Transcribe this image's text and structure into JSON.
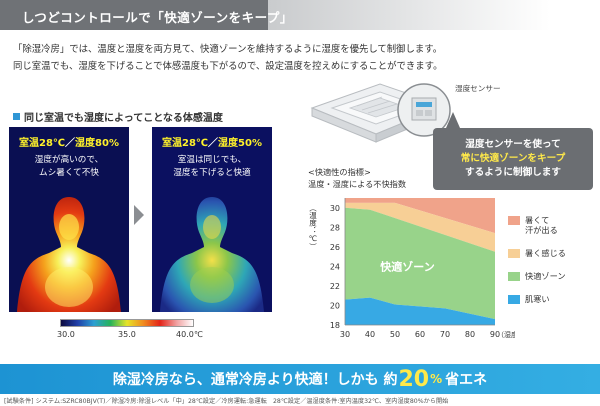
{
  "header": {
    "title": "しつどコントロールで「快適ゾーンをキープ」"
  },
  "intro": {
    "line1": "「除湿冷房」では、温度と湿度を両方見て、快適ゾーンを維持するように湿度を優先して制御します。",
    "line2": "同じ室温でも、湿度を下げることで体感温度も下がるので、設定温度を控えめにすることができます。"
  },
  "left_section": {
    "title": "同じ室温でも湿度によってことなる体感温度",
    "panel_a": {
      "temp": "室温28℃",
      "sep": "／",
      "humidity": "湿度80%",
      "desc1": "湿度が高いので、",
      "desc2": "ムシ暑くて不快"
    },
    "panel_b": {
      "temp": "室温28℃",
      "sep": "／",
      "humidity": "湿度50%",
      "desc1": "室温は同じでも、",
      "desc2": "湿度を下げると快適"
    },
    "scale": {
      "min": "30.0",
      "mid": "35.0",
      "max": "40.0℃"
    }
  },
  "right_section": {
    "sensor_label": "湿度センサー",
    "callout": {
      "line1": "湿度センサーを使って",
      "line2": "常に快適ゾーンをキープ",
      "line3": "するように制御します"
    },
    "chart_title_1": "<快適性の指標>",
    "chart_title_2": "温度・湿度による不快指数"
  },
  "chart_data": {
    "type": "area",
    "xlabel": "（湿度：%）",
    "ylabel": "（温度：℃）",
    "x_ticks": [
      30,
      40,
      50,
      60,
      70,
      80,
      90
    ],
    "y_ticks": [
      18,
      20,
      22,
      24,
      26,
      28,
      30
    ],
    "xlim": [
      30,
      90
    ],
    "ylim": [
      18,
      31
    ],
    "zone_label": "快適ゾーン",
    "zones": [
      {
        "name": "暑くて汗が出る",
        "color": "#f0a38a",
        "lower_boundary": [
          [
            30,
            30.5
          ],
          [
            50,
            30.5
          ],
          [
            90,
            27.4
          ]
        ]
      },
      {
        "name": "暑く感じる",
        "color": "#f7cf96",
        "lower_boundary": [
          [
            30,
            30.0
          ],
          [
            40,
            29.8
          ],
          [
            90,
            25.5
          ]
        ]
      },
      {
        "name": "快適ゾーン",
        "color": "#98d38a",
        "lower_boundary": [
          [
            30,
            20.6
          ],
          [
            40,
            20.8
          ],
          [
            50,
            20.1
          ],
          [
            70,
            19.7
          ],
          [
            90,
            18.6
          ]
        ]
      },
      {
        "name": "肌寒い",
        "color": "#37a9e4",
        "lower_boundary": [
          [
            30,
            18.0
          ],
          [
            90,
            18.0
          ]
        ]
      }
    ],
    "legend": [
      {
        "label_1": "暑くて",
        "label_2": "汗が出る",
        "color": "#f0a38a"
      },
      {
        "label_1": "暑く感じる",
        "label_2": "",
        "color": "#f7cf96"
      },
      {
        "label_1": "快適ゾーン",
        "label_2": "",
        "color": "#98d38a"
      },
      {
        "label_1": "肌寒い",
        "label_2": "",
        "color": "#37a9e4"
      }
    ]
  },
  "banner": {
    "pre": "除湿冷房なら、通常冷房より快適！しかも 約",
    "big": "20",
    "pct": "%",
    "post": "省エネ"
  },
  "footnote": "[試験条件] システム:SZRC80BJV(T)／除湿冷房:除湿レベル「中」28℃設定／冷房運転:急運転　28℃設定／温湿度条件:室内温度32℃、室内湿度80%から開始"
}
